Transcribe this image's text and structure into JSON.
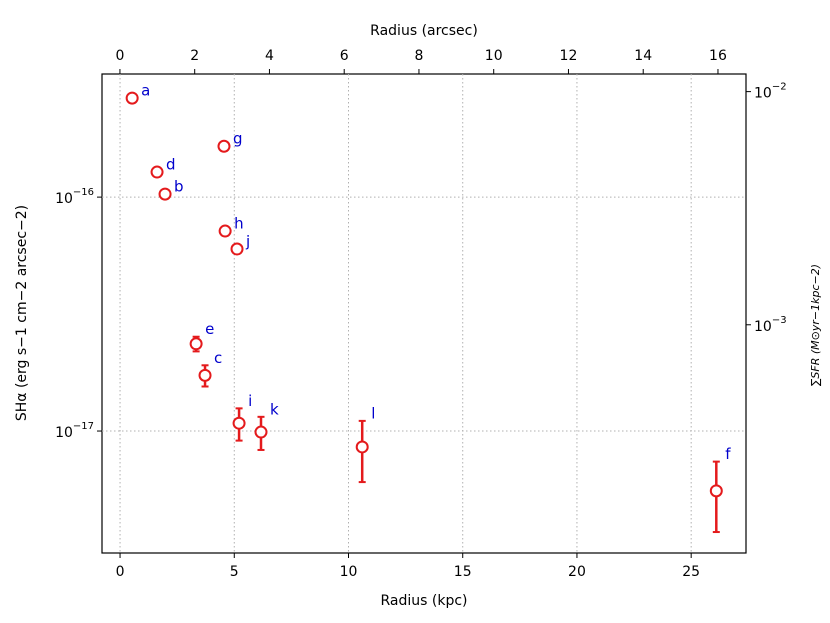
{
  "chart_data": {
    "type": "scatter",
    "x_label": "Radius (kpc)",
    "x2_label": "Radius (arcsec)",
    "y_label": "SHα (erg s−1 cm−2 arcsec−2)",
    "y2_label": "∑SFR (M⊙yr−1kpc−2)",
    "xlim": [
      -0.79,
      27.4
    ],
    "xticks": [
      0,
      5,
      10,
      15,
      20,
      25
    ],
    "x2lim": [
      -0.48,
      16.75
    ],
    "x2ticks": [
      0,
      2,
      4,
      6,
      8,
      10,
      12,
      14,
      16
    ],
    "ylim": [
      3.01e-18,
      3.36e-16
    ],
    "yticks": [
      {
        "value": 1e-17,
        "label": "10−17"
      },
      {
        "value": 1e-16,
        "label": "10−16"
      }
    ],
    "y2lim": [
      0.000105,
      0.0119
    ],
    "y2ticks": [
      {
        "value": 0.001,
        "label": "10−3"
      },
      {
        "value": 0.01,
        "label": "10−2"
      }
    ],
    "log_y": true,
    "grid": true,
    "label_color": "#0000cc",
    "series": [
      {
        "color": "#e41a1c",
        "labels": [
          "a",
          "d",
          "b",
          "g",
          "h",
          "j",
          "e",
          "c",
          "i",
          "k",
          "l",
          "f"
        ],
        "x": [
          0.53,
          1.62,
          1.97,
          4.55,
          4.6,
          5.12,
          3.33,
          3.72,
          5.21,
          6.17,
          10.6,
          26.1
        ],
        "values": [
          2.65e-16,
          1.28e-16,
          1.03e-16,
          1.65e-16,
          7.16e-17,
          6e-17,
          2.36e-17,
          1.73e-17,
          1.08e-17,
          9.9e-18,
          8.55e-18,
          5.55e-18
        ],
        "errors": [
          null,
          null,
          null,
          null,
          null,
          null,
          1.7e-18,
          1.8e-18,
          1.7e-18,
          1.6e-18,
          2.5e-18,
          1.85e-18
        ]
      }
    ]
  }
}
